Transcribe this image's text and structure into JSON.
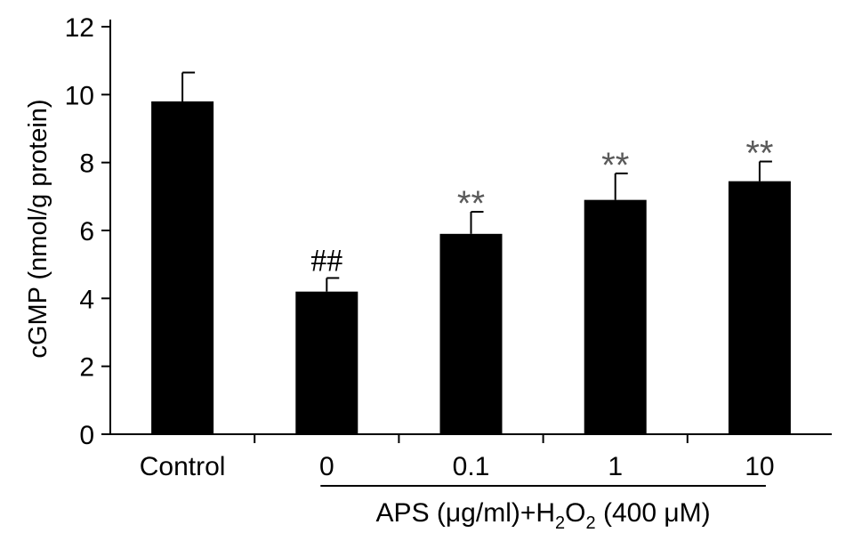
{
  "chart_data": {
    "type": "bar",
    "categories": [
      "Control",
      "0",
      "0.1",
      "1",
      "10"
    ],
    "values": [
      9.8,
      4.2,
      5.9,
      6.9,
      7.45
    ],
    "errors": [
      0.85,
      0.4,
      0.65,
      0.78,
      0.58
    ],
    "annotations": [
      "",
      "##",
      "**",
      "**",
      "**"
    ],
    "ylabel": "cGMP (nmol/g protein)",
    "ylim": [
      0,
      12
    ],
    "yticks": [
      "0",
      "2",
      "4",
      "6",
      "8",
      "10",
      "12"
    ],
    "group_label": {
      "prefix": "APS (μg/ml)+H",
      "sub1": "2",
      "mid": "O",
      "sub2": "2",
      "suffix": " (400 μM)"
    },
    "group_span": [
      "0",
      "10"
    ],
    "bar_color": "#000000",
    "annotation_color": "#5a5a5a"
  }
}
